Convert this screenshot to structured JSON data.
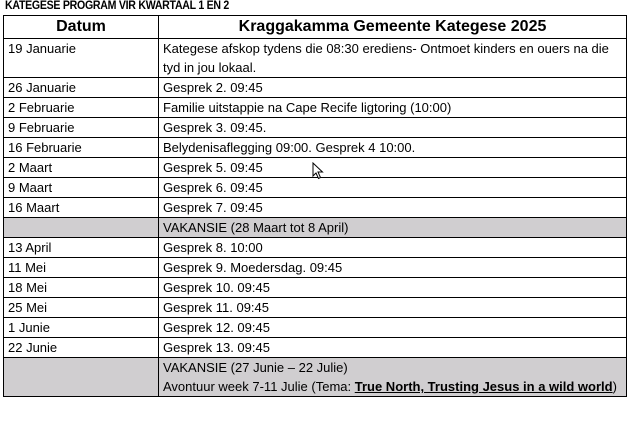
{
  "title": "KATEGESE PROGRAM VIR KWARTAAL 1 EN 2",
  "table": {
    "headers": [
      "Datum",
      "Kraggakamma Gemeente Kategese 2025"
    ],
    "rows": [
      {
        "date": "19 Januarie",
        "event": "Kategese afskop tydens die 08:30 erediens- Ontmoet kinders en ouers na die tyd in jou lokaal."
      },
      {
        "date": "26 Januarie",
        "event": "Gesprek 2. 09:45"
      },
      {
        "date": "2 Februarie",
        "event": "Familie uitstappie na Cape Recife ligtoring (10:00)"
      },
      {
        "date": "9 Februarie",
        "event": "Gesprek 3. 09:45."
      },
      {
        "date": "16 Februarie",
        "event": "Belydenisaflegging 09:00. Gesprek 4 10:00."
      },
      {
        "date": "2 Maart",
        "event": "Gesprek 5. 09:45"
      },
      {
        "date": "9 Maart",
        "event": "Gesprek 6. 09:45"
      },
      {
        "date": "16 Maart",
        "event": "Gesprek 7. 09:45"
      },
      {
        "date": "",
        "event": "VAKANSIE (28 Maart tot 8 April)"
      },
      {
        "date": "13 April",
        "event": "Gesprek 8. 10:00"
      },
      {
        "date": "11 Mei",
        "event": "Gesprek 9. Moedersdag. 09:45"
      },
      {
        "date": "18 Mei",
        "event": "Gesprek 10. 09:45"
      },
      {
        "date": "25 Mei",
        "event": "Gesprek 11. 09:45"
      },
      {
        "date": "1 Junie",
        "event": "Gesprek 12. 09:45"
      },
      {
        "date": "22 Junie",
        "event": "Gesprek 13. 09:45"
      }
    ],
    "last_row": {
      "line1": "VAKANSIE (27 Junie – 22 Julie)",
      "line2_prefix": "Avontuur week 7-11 Julie (Tema: ",
      "theme": "True North, Trusting Jesus in a wild world",
      "line2_suffix": ")"
    },
    "vacation_color": "#d0ced0"
  }
}
